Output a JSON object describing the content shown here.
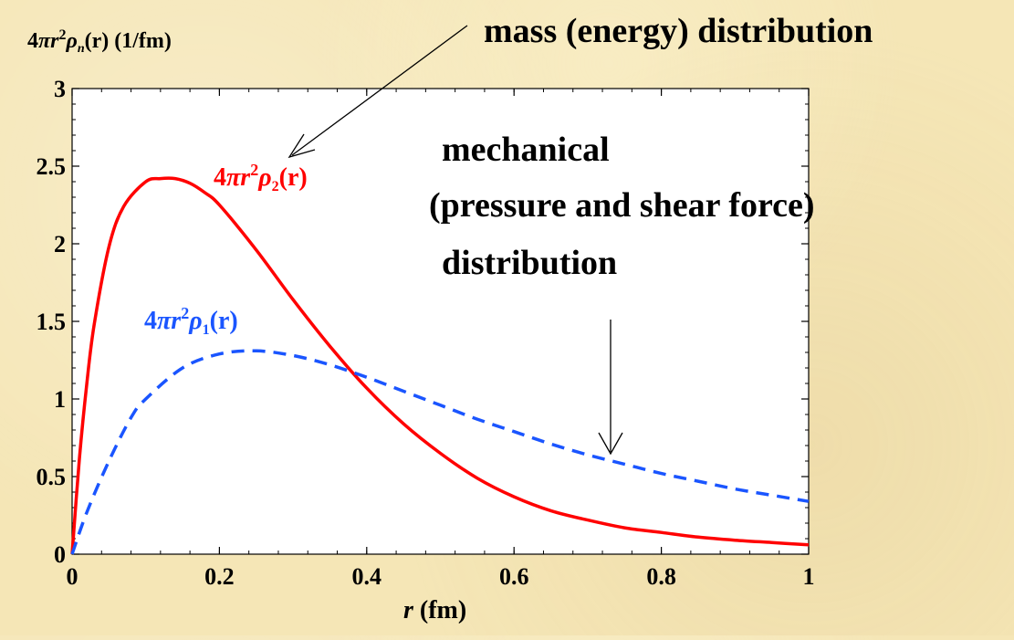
{
  "chart_data": {
    "type": "line",
    "ylabel": {
      "main": "4",
      "pi": "π",
      "r": "r",
      "sup": "2",
      "rho": "ρ",
      "sub": "n",
      "arg": "(r)",
      "unit": " (1/fm)"
    },
    "xlabel": {
      "var": "r",
      "unit": " (fm)"
    },
    "xlim": [
      0,
      1
    ],
    "ylim": [
      0,
      3
    ],
    "x_ticks": [
      0,
      0.2,
      0.4,
      0.6,
      0.8,
      1
    ],
    "x_tick_labels": [
      "0",
      "0.2",
      "0.4",
      "0.6",
      "0.8",
      "1"
    ],
    "y_ticks": [
      0,
      0.5,
      1,
      1.5,
      2,
      2.5,
      3
    ],
    "y_tick_labels": [
      "0",
      "0.5",
      "1",
      "1.5",
      "2",
      "2.5",
      "3"
    ],
    "series": [
      {
        "label": {
          "main": "4",
          "pi": "π",
          "r": "r",
          "sup": "2",
          "rho": "ρ",
          "sub": "2",
          "arg": "(r)"
        },
        "color": "#ff0000",
        "style": "solid",
        "x": [
          0,
          0.01,
          0.02,
          0.03,
          0.05,
          0.07,
          0.1,
          0.12,
          0.14,
          0.16,
          0.18,
          0.2,
          0.25,
          0.3,
          0.35,
          0.4,
          0.45,
          0.5,
          0.55,
          0.6,
          0.65,
          0.7,
          0.75,
          0.8,
          0.85,
          0.9,
          0.95,
          1.0
        ],
        "y": [
          0,
          0.62,
          1.1,
          1.48,
          1.98,
          2.24,
          2.4,
          2.42,
          2.42,
          2.39,
          2.33,
          2.25,
          1.96,
          1.64,
          1.34,
          1.07,
          0.84,
          0.65,
          0.49,
          0.37,
          0.28,
          0.22,
          0.17,
          0.14,
          0.11,
          0.09,
          0.075,
          0.06
        ]
      },
      {
        "label": {
          "main": "4",
          "pi": "π",
          "r": "r",
          "sup": "2",
          "rho": "ρ",
          "sub": "1",
          "arg": "(r)"
        },
        "color": "#1a55ff",
        "style": "dashed",
        "x": [
          0,
          0.02,
          0.05,
          0.08,
          0.1,
          0.15,
          0.2,
          0.25,
          0.3,
          0.35,
          0.4,
          0.45,
          0.5,
          0.55,
          0.6,
          0.65,
          0.7,
          0.75,
          0.8,
          0.85,
          0.9,
          0.95,
          1.0
        ],
        "y": [
          0,
          0.27,
          0.6,
          0.88,
          1.0,
          1.2,
          1.29,
          1.31,
          1.28,
          1.22,
          1.14,
          1.05,
          0.96,
          0.87,
          0.79,
          0.71,
          0.64,
          0.58,
          0.52,
          0.47,
          0.42,
          0.38,
          0.34
        ]
      }
    ],
    "annotations": {
      "mass": "mass (energy) distribution",
      "mechanical_line1": "mechanical",
      "mechanical_line2": "(pressure and shear force)",
      "mechanical_line3": "distribution"
    }
  }
}
